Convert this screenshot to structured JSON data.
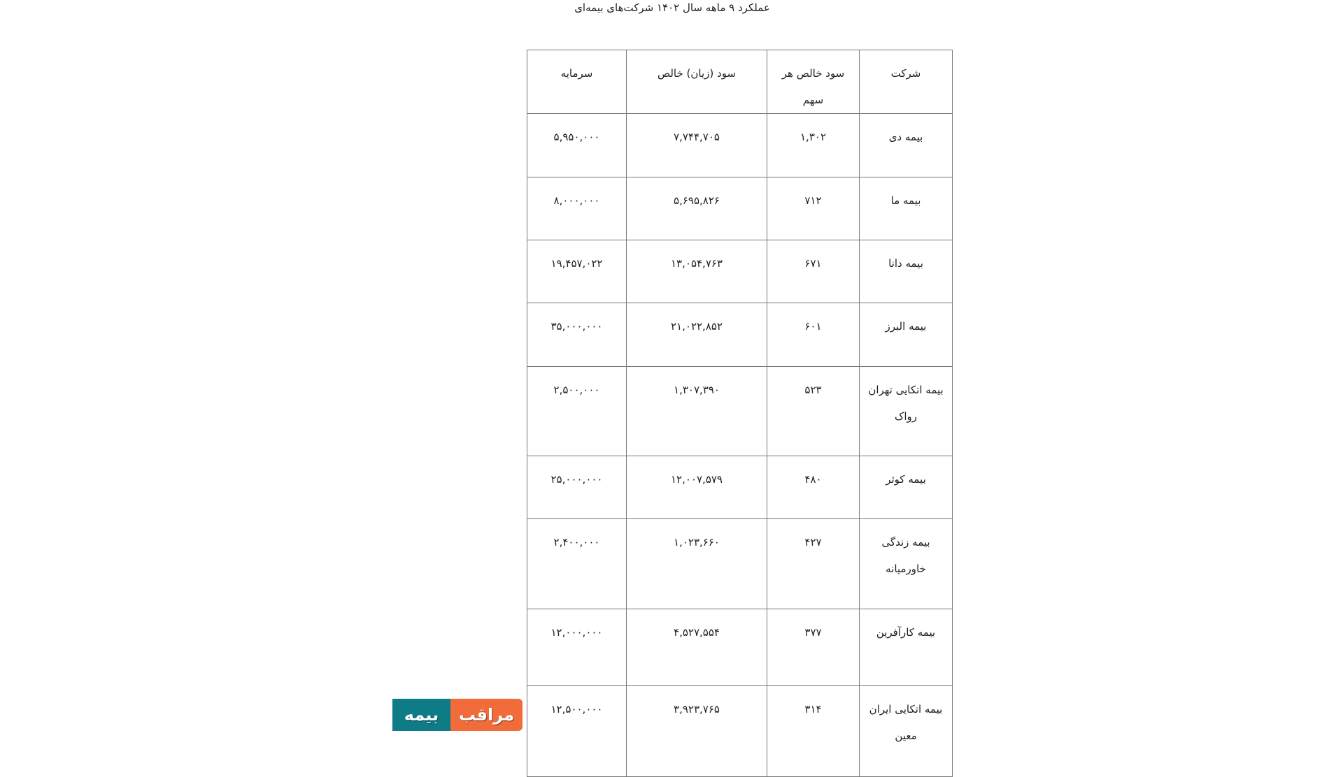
{
  "title": "عملکرد ۹ ماهه سال ۱۴۰۲ شرکت‌های بیمه‌ای",
  "table": {
    "headers": [
      "شرکت",
      "سود خالص هر سهم",
      "سود (زیان) خالص",
      "سرمایه"
    ],
    "rows": [
      [
        "بیمه دی",
        "۱,۳۰۲",
        "۷,۷۴۴,۷۰۵",
        "۵,۹۵۰,۰۰۰"
      ],
      [
        "بیمه ما",
        "۷۱۲",
        "۵,۶۹۵,۸۲۶",
        "۸,۰۰۰,۰۰۰"
      ],
      [
        "بیمه دانا",
        "۶۷۱",
        "۱۳,۰۵۴,۷۶۳",
        "۱۹,۴۵۷,۰۲۲"
      ],
      [
        "بیمه البرز",
        "۶۰۱",
        "۲۱,۰۲۲,۸۵۲",
        "۳۵,۰۰۰,۰۰۰"
      ],
      [
        "بیمه اتکایی تهران رواک",
        "۵۲۳",
        "۱,۳۰۷,۳۹۰",
        "۲,۵۰۰,۰۰۰"
      ],
      [
        "بیمه کوثر",
        "۴۸۰",
        "۱۲,۰۰۷,۵۷۹",
        "۲۵,۰۰۰,۰۰۰"
      ],
      [
        "بیمه زندگی خاورمیانه",
        "۴۲۷",
        "۱,۰۲۳,۶۶۰",
        "۲,۴۰۰,۰۰۰"
      ],
      [
        "بیمه کارآفرین",
        "۳۷۷",
        "۴,۵۲۷,۵۵۴",
        "۱۲,۰۰۰,۰۰۰"
      ],
      [
        "بیمه اتکایی ایران معین",
        "۳۱۴",
        "۳,۹۲۳,۷۶۵",
        "۱۲,۵۰۰,۰۰۰"
      ]
    ]
  },
  "logo": {
    "word_right": "مراقب",
    "word_left": "بیمه",
    "colors": {
      "teal": "#0e7c86",
      "orange": "#f26b3a"
    }
  }
}
